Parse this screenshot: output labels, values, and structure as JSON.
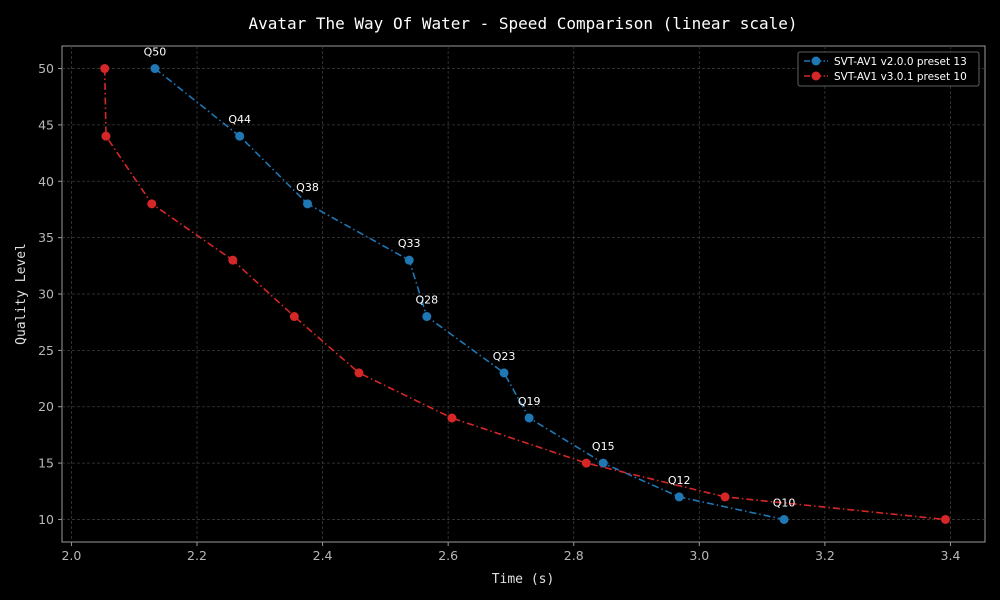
{
  "chart_data": {
    "type": "line",
    "title": "Avatar The Way Of Water - Speed Comparison (linear scale)",
    "xlabel": "Time (s)",
    "ylabel": "Quality Level",
    "xlim": [
      1.985,
      3.455
    ],
    "ylim": [
      8.0,
      52.0
    ],
    "xticks": [
      2.0,
      2.2,
      2.4,
      2.6,
      2.8,
      3.0,
      3.2,
      3.4
    ],
    "xtick_labels": [
      "2.0",
      "2.2",
      "2.4",
      "2.6",
      "2.8",
      "3.0",
      "3.2",
      "3.4"
    ],
    "yticks": [
      10,
      15,
      20,
      25,
      30,
      35,
      40,
      45,
      50
    ],
    "ytick_labels": [
      "10",
      "15",
      "20",
      "25",
      "30",
      "35",
      "40",
      "45",
      "50"
    ],
    "grid": true,
    "legend_position": "top-right",
    "series": [
      {
        "name": "SVT-AV1 v2.0.0 preset 13",
        "color": "#1f77b4",
        "x": [
          2.133,
          2.268,
          2.376,
          2.538,
          2.566,
          2.689,
          2.729,
          2.847,
          2.968,
          3.135
        ],
        "y": [
          50,
          44,
          38,
          33,
          28,
          23,
          19,
          15,
          12,
          10
        ]
      },
      {
        "name": "SVT-AV1 v3.0.1 preset 10",
        "color": "#d62728",
        "x": [
          2.053,
          2.055,
          2.128,
          2.257,
          2.355,
          2.458,
          2.606,
          2.82,
          3.041,
          3.392
        ],
        "y": [
          50,
          44,
          38,
          33,
          28,
          23,
          19,
          15,
          12,
          10
        ]
      }
    ],
    "annotations": [
      {
        "text": "Q50",
        "x": 2.133,
        "y": 50
      },
      {
        "text": "Q44",
        "x": 2.268,
        "y": 44
      },
      {
        "text": "Q38",
        "x": 2.376,
        "y": 38
      },
      {
        "text": "Q33",
        "x": 2.538,
        "y": 33
      },
      {
        "text": "Q28",
        "x": 2.566,
        "y": 28
      },
      {
        "text": "Q23",
        "x": 2.689,
        "y": 23
      },
      {
        "text": "Q19",
        "x": 2.729,
        "y": 19
      },
      {
        "text": "Q15",
        "x": 2.847,
        "y": 15
      },
      {
        "text": "Q12",
        "x": 2.968,
        "y": 12
      },
      {
        "text": "Q10",
        "x": 3.135,
        "y": 10
      }
    ]
  }
}
